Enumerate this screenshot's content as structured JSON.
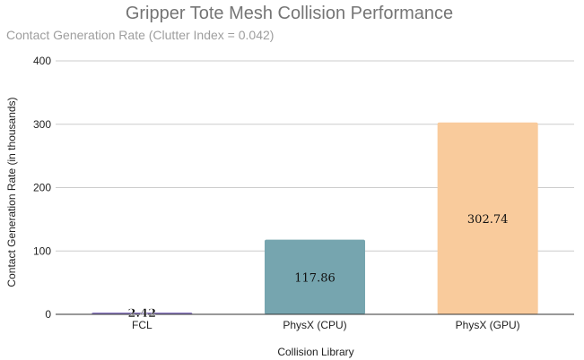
{
  "chart_data": {
    "type": "bar",
    "title": "Gripper Tote Mesh Collision Performance",
    "subtitle": "Contact Generation Rate (Clutter Index = 0.042)",
    "xlabel": "Collision Library",
    "ylabel": "Contact Generation Rate (in thousands)",
    "categories": [
      "FCL",
      "PhysX (CPU)",
      "PhysX (GPU)"
    ],
    "values": [
      2.42,
      117.86,
      302.74
    ],
    "value_labels": [
      "2.42",
      "117.86",
      "302.74"
    ],
    "colors": [
      "#8e7cc3",
      "#76a5af",
      "#f9cb9c"
    ],
    "ylim": [
      0,
      400
    ],
    "yticks": [
      0,
      100,
      200,
      300,
      400
    ],
    "grid": true,
    "legend": "none"
  }
}
